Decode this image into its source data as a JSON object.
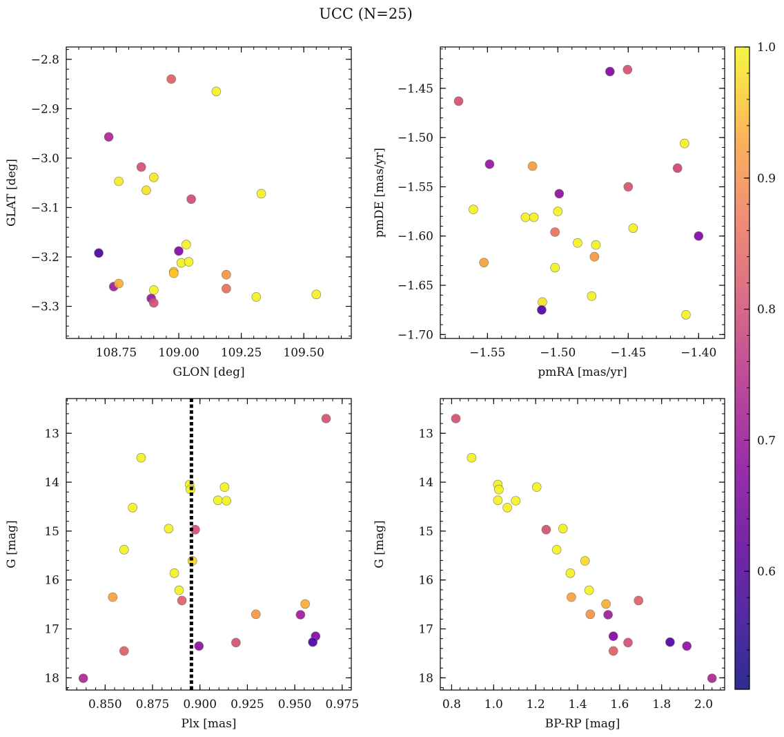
{
  "figure_title": "UCC (N=25)",
  "colorbar": {
    "range": [
      0.51,
      1.0
    ],
    "ticks": [
      "0.6",
      "0.7",
      "0.8",
      "0.9",
      "1.0"
    ],
    "tick_values": [
      0.6,
      0.7,
      0.8,
      0.9,
      1.0
    ],
    "colormap": "plasma"
  },
  "chart_data": [
    {
      "type": "scatter",
      "xlabel": "GLON [deg]",
      "ylabel": "GLAT [deg]",
      "xlim": [
        108.55,
        109.69
      ],
      "ylim": [
        -3.365,
        -2.775
      ],
      "xticks": [
        "108.75",
        "109.00",
        "109.25",
        "109.50"
      ],
      "xtick_values": [
        108.75,
        109.0,
        109.25,
        109.5
      ],
      "yticks": [
        "−2.8",
        "−2.9",
        "−3.0",
        "−3.1",
        "−3.2",
        "−3.3"
      ],
      "ytick_values": [
        -2.8,
        -2.9,
        -3.0,
        -3.1,
        -3.2,
        -3.3
      ],
      "points": [
        {
          "x": 108.97,
          "y": -2.84,
          "c": 0.77
        },
        {
          "x": 109.15,
          "y": -2.865,
          "c": 0.99
        },
        {
          "x": 108.72,
          "y": -2.957,
          "c": 0.66
        },
        {
          "x": 108.85,
          "y": -3.018,
          "c": 0.74
        },
        {
          "x": 108.76,
          "y": -3.047,
          "c": 0.98
        },
        {
          "x": 108.9,
          "y": -3.039,
          "c": 0.98
        },
        {
          "x": 108.87,
          "y": -3.065,
          "c": 0.97
        },
        {
          "x": 109.33,
          "y": -3.072,
          "c": 0.99
        },
        {
          "x": 109.05,
          "y": -3.083,
          "c": 0.73
        },
        {
          "x": 109.0,
          "y": -3.188,
          "c": 0.59
        },
        {
          "x": 109.03,
          "y": -3.175,
          "c": 0.99
        },
        {
          "x": 108.68,
          "y": -3.192,
          "c": 0.52
        },
        {
          "x": 109.01,
          "y": -3.212,
          "c": 0.99
        },
        {
          "x": 109.04,
          "y": -3.21,
          "c": 0.99
        },
        {
          "x": 108.98,
          "y": -3.23,
          "c": 0.96
        },
        {
          "x": 108.98,
          "y": -3.233,
          "c": 0.93
        },
        {
          "x": 109.19,
          "y": -3.236,
          "c": 0.86
        },
        {
          "x": 108.74,
          "y": -3.26,
          "c": 0.64
        },
        {
          "x": 108.76,
          "y": -3.254,
          "c": 0.9
        },
        {
          "x": 109.19,
          "y": -3.264,
          "c": 0.8
        },
        {
          "x": 108.9,
          "y": -3.267,
          "c": 0.99
        },
        {
          "x": 109.31,
          "y": -3.281,
          "c": 0.99
        },
        {
          "x": 109.55,
          "y": -3.276,
          "c": 0.99
        },
        {
          "x": 108.89,
          "y": -3.284,
          "c": 0.63
        },
        {
          "x": 108.9,
          "y": -3.293,
          "c": 0.74
        }
      ]
    },
    {
      "type": "scatter",
      "xlabel": "pmRA [mas/yr]",
      "ylabel": "pmDE [mas/yr]",
      "xlim": [
        -1.5835,
        -1.3815
      ],
      "ylim": [
        -1.704,
        -1.408
      ],
      "xticks": [
        "−1.55",
        "−1.50",
        "−1.45",
        "−1.40"
      ],
      "xtick_values": [
        -1.55,
        -1.5,
        -1.45,
        -1.4
      ],
      "yticks": [
        "−1.45",
        "−1.50",
        "−1.55",
        "−1.60",
        "−1.65",
        "−1.70"
      ],
      "ytick_values": [
        -1.45,
        -1.5,
        -1.55,
        -1.6,
        -1.65,
        -1.7
      ],
      "points": [
        {
          "x": -1.463,
          "y": -1.433,
          "c": 0.59
        },
        {
          "x": -1.4505,
          "y": -1.431,
          "c": 0.74
        },
        {
          "x": -1.5705,
          "y": -1.463,
          "c": 0.74
        },
        {
          "x": -1.41,
          "y": -1.506,
          "c": 0.99
        },
        {
          "x": -1.5485,
          "y": -1.527,
          "c": 0.62
        },
        {
          "x": -1.518,
          "y": -1.529,
          "c": 0.87
        },
        {
          "x": -1.415,
          "y": -1.531,
          "c": 0.72
        },
        {
          "x": -1.45,
          "y": -1.55,
          "c": 0.75
        },
        {
          "x": -1.499,
          "y": -1.557,
          "c": 0.61
        },
        {
          "x": -1.56,
          "y": -1.573,
          "c": 0.99
        },
        {
          "x": -1.5,
          "y": -1.575,
          "c": 0.99
        },
        {
          "x": -1.523,
          "y": -1.581,
          "c": 0.99
        },
        {
          "x": -1.517,
          "y": -1.581,
          "c": 0.99
        },
        {
          "x": -1.4465,
          "y": -1.592,
          "c": 0.99
        },
        {
          "x": -1.502,
          "y": -1.596,
          "c": 0.8
        },
        {
          "x": -1.4,
          "y": -1.6,
          "c": 0.59
        },
        {
          "x": -1.486,
          "y": -1.607,
          "c": 0.99
        },
        {
          "x": -1.473,
          "y": -1.609,
          "c": 0.99
        },
        {
          "x": -1.474,
          "y": -1.621,
          "c": 0.86
        },
        {
          "x": -1.5525,
          "y": -1.627,
          "c": 0.88
        },
        {
          "x": -1.502,
          "y": -1.632,
          "c": 0.99
        },
        {
          "x": -1.476,
          "y": -1.661,
          "c": 0.99
        },
        {
          "x": -1.511,
          "y": -1.667,
          "c": 0.97
        },
        {
          "x": -1.5115,
          "y": -1.675,
          "c": 0.52
        },
        {
          "x": -1.409,
          "y": -1.68,
          "c": 0.99
        }
      ]
    },
    {
      "type": "scatter",
      "xlabel": "Plx [mas]",
      "ylabel": "G [mag]",
      "xlim": [
        0.8295,
        0.9798
      ],
      "ylim": [
        18.25,
        12.29
      ],
      "xticks": [
        "0.850",
        "0.875",
        "0.900",
        "0.925",
        "0.950",
        "0.975"
      ],
      "xtick_values": [
        0.85,
        0.875,
        0.9,
        0.925,
        0.95,
        0.975
      ],
      "yticks": [
        "13",
        "14",
        "15",
        "16",
        "17",
        "18"
      ],
      "ytick_values": [
        13,
        14,
        15,
        16,
        17,
        18
      ],
      "vline": {
        "x": 0.8955,
        "style": "dotted"
      },
      "points": [
        {
          "x": 0.9665,
          "y": 12.7,
          "c": 0.74
        },
        {
          "x": 0.869,
          "y": 13.5,
          "c": 0.99
        },
        {
          "x": 0.8945,
          "y": 14.05,
          "c": 0.99
        },
        {
          "x": 0.895,
          "y": 14.15,
          "c": 0.99
        },
        {
          "x": 0.913,
          "y": 14.1,
          "c": 0.99
        },
        {
          "x": 0.9095,
          "y": 14.37,
          "c": 0.99
        },
        {
          "x": 0.914,
          "y": 14.38,
          "c": 0.99
        },
        {
          "x": 0.8645,
          "y": 14.52,
          "c": 0.99
        },
        {
          "x": 0.8835,
          "y": 14.95,
          "c": 0.99
        },
        {
          "x": 0.8975,
          "y": 14.97,
          "c": 0.74
        },
        {
          "x": 0.86,
          "y": 15.38,
          "c": 0.99
        },
        {
          "x": 0.896,
          "y": 15.61,
          "c": 0.96
        },
        {
          "x": 0.8865,
          "y": 15.86,
          "c": 0.99
        },
        {
          "x": 0.889,
          "y": 16.21,
          "c": 0.99
        },
        {
          "x": 0.854,
          "y": 16.35,
          "c": 0.88
        },
        {
          "x": 0.8905,
          "y": 16.42,
          "c": 0.77
        },
        {
          "x": 0.9555,
          "y": 16.49,
          "c": 0.9
        },
        {
          "x": 0.9295,
          "y": 16.7,
          "c": 0.86
        },
        {
          "x": 0.953,
          "y": 16.71,
          "c": 0.64
        },
        {
          "x": 0.961,
          "y": 17.15,
          "c": 0.59
        },
        {
          "x": 0.9595,
          "y": 17.27,
          "c": 0.52
        },
        {
          "x": 0.919,
          "y": 17.28,
          "c": 0.74
        },
        {
          "x": 0.8995,
          "y": 17.35,
          "c": 0.61
        },
        {
          "x": 0.86,
          "y": 17.45,
          "c": 0.77
        },
        {
          "x": 0.8385,
          "y": 18.01,
          "c": 0.66
        }
      ]
    },
    {
      "type": "scatter",
      "xlabel": "BP-RP [mag]",
      "ylabel": "G [mag]",
      "xlim": [
        0.746,
        2.1
      ],
      "ylim": [
        18.25,
        12.29
      ],
      "xticks": [
        "0.8",
        "1.0",
        "1.2",
        "1.4",
        "1.6",
        "1.8",
        "2.0"
      ],
      "xtick_values": [
        0.8,
        1.0,
        1.2,
        1.4,
        1.6,
        1.8,
        2.0
      ],
      "yticks": [
        "13",
        "14",
        "15",
        "16",
        "17",
        "18"
      ],
      "ytick_values": [
        13,
        14,
        15,
        16,
        17,
        18
      ],
      "points": [
        {
          "x": 0.82,
          "y": 12.7,
          "c": 0.74
        },
        {
          "x": 0.895,
          "y": 13.5,
          "c": 0.99
        },
        {
          "x": 1.02,
          "y": 14.05,
          "c": 0.99
        },
        {
          "x": 1.025,
          "y": 14.15,
          "c": 0.99
        },
        {
          "x": 1.205,
          "y": 14.1,
          "c": 0.99
        },
        {
          "x": 1.02,
          "y": 14.37,
          "c": 0.99
        },
        {
          "x": 1.105,
          "y": 14.38,
          "c": 0.99
        },
        {
          "x": 1.065,
          "y": 14.52,
          "c": 0.99
        },
        {
          "x": 1.33,
          "y": 14.95,
          "c": 0.99
        },
        {
          "x": 1.25,
          "y": 14.97,
          "c": 0.74
        },
        {
          "x": 1.3,
          "y": 15.38,
          "c": 0.99
        },
        {
          "x": 1.435,
          "y": 15.61,
          "c": 0.96
        },
        {
          "x": 1.365,
          "y": 15.86,
          "c": 0.99
        },
        {
          "x": 1.455,
          "y": 16.21,
          "c": 0.99
        },
        {
          "x": 1.37,
          "y": 16.35,
          "c": 0.88
        },
        {
          "x": 1.69,
          "y": 16.42,
          "c": 0.77
        },
        {
          "x": 1.535,
          "y": 16.49,
          "c": 0.9
        },
        {
          "x": 1.46,
          "y": 16.7,
          "c": 0.86
        },
        {
          "x": 1.545,
          "y": 16.71,
          "c": 0.64
        },
        {
          "x": 1.57,
          "y": 17.15,
          "c": 0.59
        },
        {
          "x": 1.84,
          "y": 17.27,
          "c": 0.52
        },
        {
          "x": 1.64,
          "y": 17.28,
          "c": 0.74
        },
        {
          "x": 1.92,
          "y": 17.35,
          "c": 0.61
        },
        {
          "x": 1.57,
          "y": 17.45,
          "c": 0.77
        },
        {
          "x": 2.04,
          "y": 18.01,
          "c": 0.66
        }
      ]
    }
  ]
}
